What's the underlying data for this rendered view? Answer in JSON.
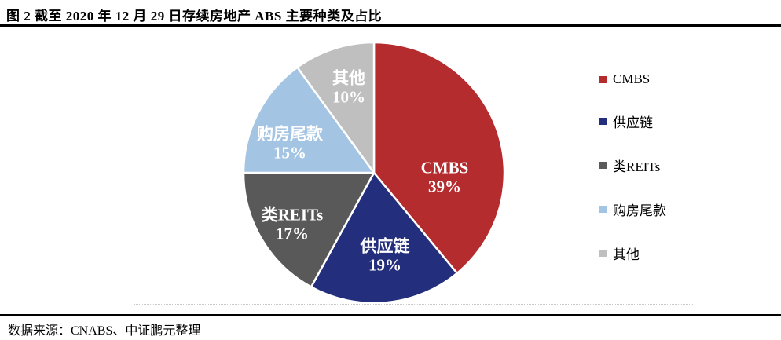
{
  "header": {
    "title": "图 2 截至 2020 年 12 月 29 日存续房地产 ABS 主要种类及占比"
  },
  "chart_data": {
    "type": "pie",
    "title": "截至 2020 年 12 月 29 日存续房地产 ABS 主要种类及占比",
    "categories": [
      "CMBS",
      "供应链",
      "类REITs",
      "购房尾款",
      "其他"
    ],
    "values": [
      39,
      19,
      17,
      15,
      10
    ],
    "unit": "%",
    "start_angle_deg": 0,
    "direction": "clockwise",
    "legend_position": "right",
    "label_text_color": "#ffffff",
    "slices": [
      {
        "id": "cmbs",
        "label": "CMBS",
        "pct_label": "39%",
        "value": 39,
        "color": "#b52c2f"
      },
      {
        "id": "supply-chain",
        "label": "供应链",
        "pct_label": "19%",
        "value": 19,
        "color": "#232f7c"
      },
      {
        "id": "quasi-reits",
        "label": "类REITs",
        "pct_label": "17%",
        "value": 17,
        "color": "#595959"
      },
      {
        "id": "housing-balance",
        "label": "购房尾款",
        "pct_label": "15%",
        "value": 15,
        "color": "#a3c4e3"
      },
      {
        "id": "other",
        "label": "其他",
        "pct_label": "10%",
        "value": 10,
        "color": "#bfbfbf"
      }
    ]
  },
  "footer": {
    "source": "数据来源：CNABS、中证鹏元整理"
  }
}
